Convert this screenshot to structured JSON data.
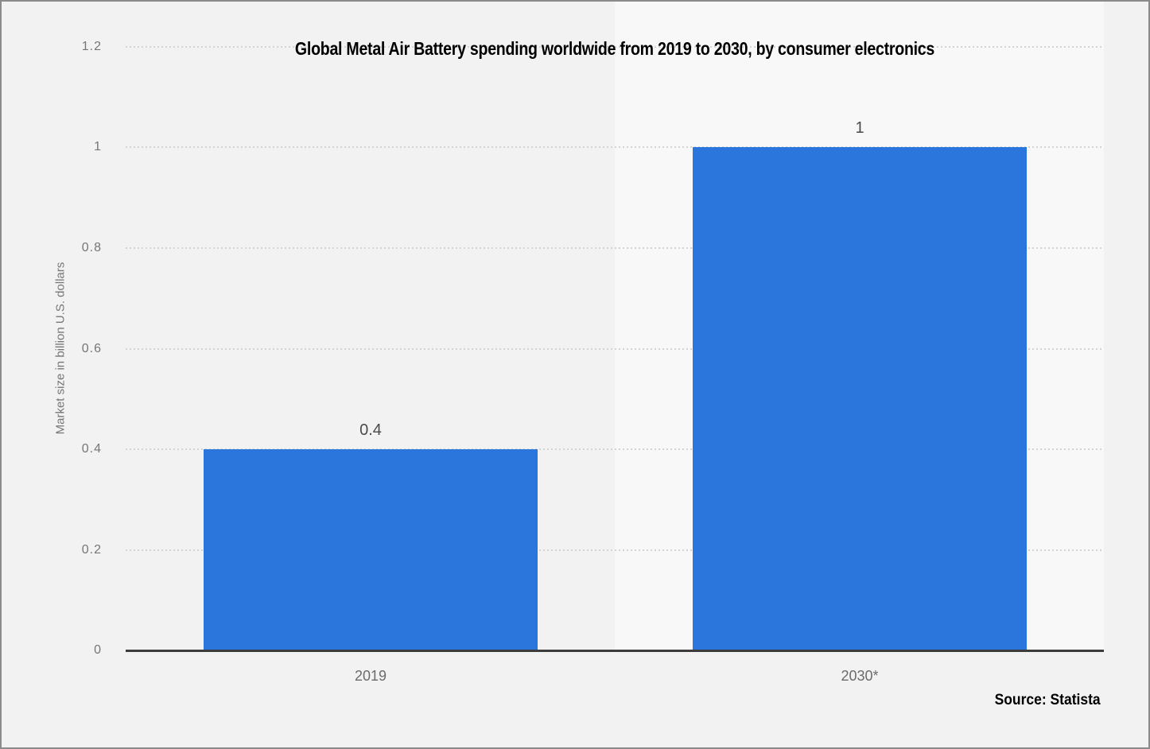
{
  "chart_data": {
    "type": "bar",
    "title": "Global Metal Air Battery spending worldwide from 2019 to 2030, by consumer electronics",
    "ylabel": "Market size in billion U.S. dollars",
    "xlabel": "",
    "categories": [
      "2019",
      "2030*"
    ],
    "values": [
      0.4,
      1
    ],
    "value_labels": [
      "0.4",
      "1"
    ],
    "ylim": [
      0,
      1.2
    ],
    "yticks": [
      {
        "value": 0,
        "label": "0"
      },
      {
        "value": 0.2,
        "label": "0.2"
      },
      {
        "value": 0.4,
        "label": "0.4"
      },
      {
        "value": 0.6,
        "label": "0.6"
      },
      {
        "value": 0.8,
        "label": "0.8"
      },
      {
        "value": 1,
        "label": "1"
      },
      {
        "value": 1.2,
        "label": "1.2"
      }
    ],
    "grid": "horizontal-dotted",
    "legend": "none",
    "highlighted_category": "2030*",
    "source": "Source: Statista",
    "colors": {
      "bar": "#2b76dd",
      "background": "#f2f2f2",
      "highlight_band": "#f8f8f8",
      "gridline": "#d4d4d4",
      "axis_line": "#3c3c3c",
      "tick_label": "#767676",
      "value_label": "#4a4a4a",
      "title": "#000000"
    }
  }
}
